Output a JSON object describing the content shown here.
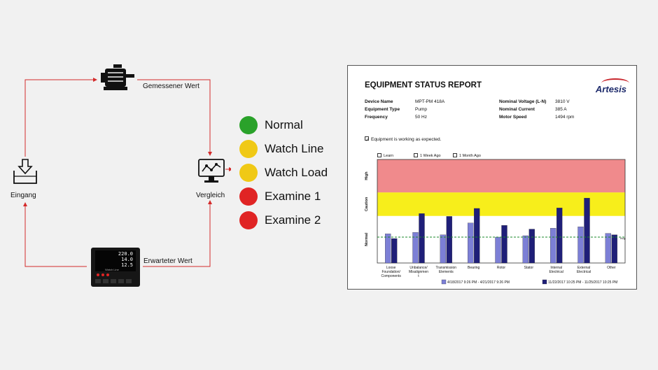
{
  "flow": {
    "motor_label": "Gemessener Wert",
    "input_label": "Eingang",
    "compare_label": "Vergleich",
    "device_label": "Erwarteter Wert",
    "device_values": [
      "220.0",
      "14.0",
      "12.5"
    ],
    "device_caption": "Watch Line"
  },
  "status_levels": [
    {
      "label": "Normal",
      "color": "#2aa22a"
    },
    {
      "label": "Watch Line",
      "color": "#f0c915"
    },
    {
      "label": "Watch Load",
      "color": "#f0c915"
    },
    {
      "label": "Examine 1",
      "color": "#e02424"
    },
    {
      "label": "Examine 2",
      "color": "#e02424"
    }
  ],
  "report": {
    "title": "EQUIPMENT STATUS REPORT",
    "brand": "Artesis",
    "fields_left": [
      {
        "label": "Device Name",
        "value": "MPT-PM 418A"
      },
      {
        "label": "Equipment Type",
        "value": "Pump"
      },
      {
        "label": "Frequency",
        "value": "50 Hz"
      }
    ],
    "fields_right": [
      {
        "label": "Nominal Voltage (L-N)",
        "value": "3810 V"
      },
      {
        "label": "Nominal Current",
        "value": "385 A"
      },
      {
        "label": "Motor Speed",
        "value": "1494 rpm"
      }
    ],
    "status_message": "Equipment is working as expected.",
    "checkboxes": [
      "Learn",
      "1 Week Ago",
      "1 Month Ago"
    ]
  },
  "chart_data": {
    "type": "bar",
    "categories": [
      "Loose Foundation/ Components",
      "Unbalance/ Misalignment",
      "Transmission Elements",
      "Bearing",
      "Rotor",
      "Stator",
      "Internal Electrical",
      "External Electrical",
      "Other"
    ],
    "category_lines": [
      [
        "Loose",
        "Foundation/",
        "Components"
      ],
      [
        "Unbalance/",
        "Misalignmen",
        "t"
      ],
      [
        "Transmission",
        "Elements"
      ],
      [
        "Bearing"
      ],
      [
        "Rotor"
      ],
      [
        "Stator"
      ],
      [
        "Internal",
        "Electrical"
      ],
      [
        "External",
        "Electrical"
      ],
      [
        "Other"
      ]
    ],
    "y_zones": [
      {
        "label": "Normal",
        "from": 0,
        "to": 1,
        "color": "#ffffff"
      },
      {
        "label": "Caution",
        "from": 1,
        "to": 1.5,
        "color": "#f7ee1b"
      },
      {
        "label": "High",
        "from": 1.5,
        "to": 2.2,
        "color": "#f08a8c"
      }
    ],
    "ylim": [
      0,
      2.2
    ],
    "threshold": 0.55,
    "threshold_label": "Avg.",
    "series": [
      {
        "name": "4/18/2017 9:26 PM - 4/21/2017 9:26 PM",
        "color": "#7c7fd6",
        "values": [
          0.62,
          0.65,
          0.6,
          0.85,
          0.55,
          0.58,
          0.74,
          0.77,
          0.63
        ]
      },
      {
        "name": "11/22/2017 10:25 PM - 11/25/2017 10:25 PM",
        "color": "#1f1f78",
        "values": [
          0.52,
          1.05,
          0.99,
          1.16,
          0.8,
          0.72,
          1.17,
          1.38,
          0.6
        ]
      }
    ]
  }
}
